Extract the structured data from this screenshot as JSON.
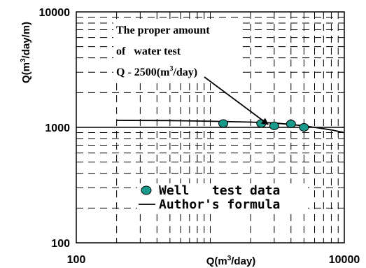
{
  "chart_data": {
    "type": "scatter",
    "x_scale": "log",
    "y_scale": "log",
    "xlim": [
      100,
      10000
    ],
    "ylim": [
      100,
      10000
    ],
    "grid": true,
    "xlabel": {
      "pre": "Q(m",
      "sup": "3",
      "post": "/day)"
    },
    "ylabel": {
      "pre": "Q(m",
      "sup": "3",
      "post": "/day/m)"
    },
    "x_ticks": [
      {
        "value": 100,
        "label": "100"
      },
      {
        "value": 10000,
        "label": "10000"
      }
    ],
    "y_ticks": [
      {
        "value": 100,
        "label": "100"
      },
      {
        "value": 1000,
        "label": "1000"
      },
      {
        "value": 10000,
        "label": "10000"
      }
    ],
    "reference_line_y": 1000,
    "series": [
      {
        "name": "Well   test data",
        "kind": "scatter",
        "color": "#1a9a8a",
        "x": [
          1250,
          2400,
          3000,
          4000,
          5000
        ],
        "y": [
          1080,
          1080,
          1030,
          1070,
          1000
        ]
      },
      {
        "name": "Author's formula",
        "kind": "line",
        "color": "#000000",
        "x": [
          200,
          500,
          1000,
          2000,
          3000,
          4000,
          5000,
          6000,
          8000,
          10000
        ],
        "y": [
          1150,
          1145,
          1130,
          1110,
          1090,
          1060,
          1030,
          1000,
          950,
          900
        ]
      }
    ],
    "annotation": {
      "lines": [
        "The proper amount",
        "of   water test",
        "Q - 2500(m"
      ],
      "line3_sup": "3",
      "line3_post": "/day)",
      "arrow_target": {
        "x": 2700,
        "y": 1060
      }
    }
  }
}
